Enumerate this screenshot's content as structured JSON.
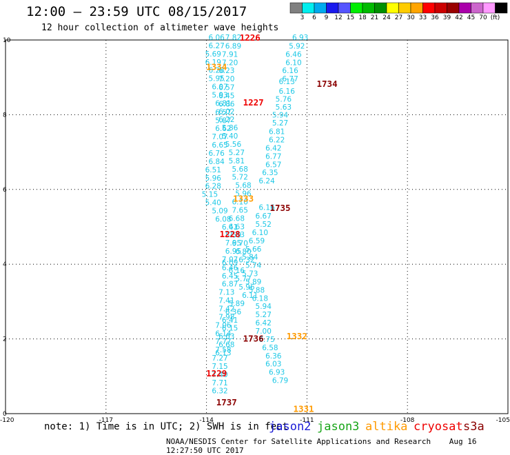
{
  "title": "12:00 – 23:59 UTC 08/15/2017",
  "subtitle": "12 hour collection of altimeter wave heights",
  "note": "note: 1) Time is in UTC; 2) SWH is in feet",
  "footer_left": "NOAA/NESDIS Center for Satellite Applications and Research",
  "footer_right": "Aug 16 12:27:50 UTC 2017",
  "legend": [
    {
      "name": "jason2",
      "color": "#1a1ad6"
    },
    {
      "name": "jason3",
      "color": "#17a517"
    },
    {
      "name": "altika",
      "color": "#ff9a00"
    },
    {
      "name": "cryosat",
      "color": "#ee0000"
    },
    {
      "name": "s3a",
      "color": "#8b0000"
    }
  ],
  "colorbar": {
    "colors": [
      "#808080",
      "#00eeee",
      "#00aaee",
      "#1a1aee",
      "#5555ff",
      "#00ee00",
      "#00bb00",
      "#009000",
      "#ffff00",
      "#ffcc00",
      "#ffa500",
      "#ff0000",
      "#cc0000",
      "#990000",
      "#aa00aa",
      "#cc66cc",
      "#ff99ff",
      "#000000"
    ],
    "labels": [
      "3",
      "6",
      "9",
      "12",
      "15",
      "18",
      "21",
      "24",
      "27",
      "30",
      "33",
      "36",
      "39",
      "42",
      "45",
      "70",
      "(ft)"
    ]
  },
  "chart_data": {
    "type": "scatter",
    "xlim": [
      -120,
      -105
    ],
    "ylim": [
      0,
      10
    ],
    "x_ticks": [
      "-120",
      "-117",
      "-114",
      "-111",
      "-108",
      "-105"
    ],
    "y_ticks": [
      "0",
      "2",
      "4",
      "6",
      "8",
      "10"
    ],
    "grid": true,
    "point_color": "#1ec8e6",
    "times": [
      {
        "label": "1226",
        "color": "#ee0000",
        "x": -112.7,
        "y": 9.98
      },
      {
        "label": "1334",
        "color": "#ff9a00",
        "x": -113.7,
        "y": 9.2
      },
      {
        "label": "1734",
        "color": "#8b0000",
        "x": -110.4,
        "y": 8.75
      },
      {
        "label": "1227",
        "color": "#ee0000",
        "x": -112.6,
        "y": 8.25
      },
      {
        "label": "1333",
        "color": "#ff9a00",
        "x": -112.9,
        "y": 5.67
      },
      {
        "label": "1735",
        "color": "#8b0000",
        "x": -111.8,
        "y": 5.42
      },
      {
        "label": "1228",
        "color": "#ee0000",
        "x": -113.3,
        "y": 4.72
      },
      {
        "label": "1332",
        "color": "#ff9a00",
        "x": -111.3,
        "y": 1.99
      },
      {
        "label": "1736",
        "color": "#8b0000",
        "x": -112.6,
        "y": 1.93
      },
      {
        "label": "1229",
        "color": "#ee0000",
        "x": -113.7,
        "y": 1.0
      },
      {
        "label": "1737",
        "color": "#8b0000",
        "x": -113.4,
        "y": 0.22
      },
      {
        "label": "1331",
        "color": "#ff9a00",
        "x": -111.1,
        "y": 0.05
      }
    ],
    "points": [
      {
        "x": -113.2,
        "y": 10.0,
        "v": "7.82"
      },
      {
        "x": -111.2,
        "y": 10.0,
        "v": "6.93"
      },
      {
        "x": -113.2,
        "y": 9.77,
        "v": "6.89"
      },
      {
        "x": -111.3,
        "y": 9.77,
        "v": "5.92"
      },
      {
        "x": -113.3,
        "y": 9.55,
        "v": "7.91"
      },
      {
        "x": -111.4,
        "y": 9.55,
        "v": "6.46"
      },
      {
        "x": -113.3,
        "y": 9.33,
        "v": "7.20"
      },
      {
        "x": -111.4,
        "y": 9.33,
        "v": "6.10"
      },
      {
        "x": -113.4,
        "y": 9.11,
        "v": "6.23"
      },
      {
        "x": -111.5,
        "y": 9.11,
        "v": "6.16"
      },
      {
        "x": -113.4,
        "y": 8.89,
        "v": "7.20"
      },
      {
        "x": -111.5,
        "y": 8.89,
        "v": "6.77"
      },
      {
        "x": -111.6,
        "y": 8.82,
        "v": "6.13"
      },
      {
        "x": -113.4,
        "y": 8.66,
        "v": "6.57"
      },
      {
        "x": -111.6,
        "y": 8.56,
        "v": "6.16"
      },
      {
        "x": -113.4,
        "y": 8.44,
        "v": "6.45"
      },
      {
        "x": -111.7,
        "y": 8.35,
        "v": "5.76"
      },
      {
        "x": -113.4,
        "y": 8.22,
        "v": "6.86"
      },
      {
        "x": -111.7,
        "y": 8.14,
        "v": "5.63"
      },
      {
        "x": -113.5,
        "y": 8.0,
        "v": "6.57"
      },
      {
        "x": -111.8,
        "y": 7.92,
        "v": "5.94"
      },
      {
        "x": -113.5,
        "y": 7.78,
        "v": "5.87"
      },
      {
        "x": -111.8,
        "y": 7.71,
        "v": "5.27"
      },
      {
        "x": -113.5,
        "y": 7.56,
        "v": "6.62"
      },
      {
        "x": -111.9,
        "y": 7.48,
        "v": "6.81"
      },
      {
        "x": -113.6,
        "y": 7.34,
        "v": "7.07"
      },
      {
        "x": -111.9,
        "y": 7.26,
        "v": "6.22"
      },
      {
        "x": -113.6,
        "y": 7.12,
        "v": "6.65"
      },
      {
        "x": -112.0,
        "y": 7.04,
        "v": "6.42"
      },
      {
        "x": -113.7,
        "y": 6.9,
        "v": "6.76"
      },
      {
        "x": -112.0,
        "y": 6.82,
        "v": "6.77"
      },
      {
        "x": -113.7,
        "y": 6.68,
        "v": "6.84"
      },
      {
        "x": -112.0,
        "y": 6.6,
        "v": "6.57"
      },
      {
        "x": -113.8,
        "y": 6.46,
        "v": "6.51"
      },
      {
        "x": -112.1,
        "y": 6.38,
        "v": "6.35"
      },
      {
        "x": -113.8,
        "y": 6.24,
        "v": "5.96"
      },
      {
        "x": -112.2,
        "y": 6.16,
        "v": "6.24"
      },
      {
        "x": -113.8,
        "y": 6.02,
        "v": "6.28"
      },
      {
        "x": -113.9,
        "y": 5.8,
        "v": "5.15"
      },
      {
        "x": -113.8,
        "y": 5.58,
        "v": "5.40"
      },
      {
        "x": -112.2,
        "y": 5.45,
        "v": "6.16"
      },
      {
        "x": -113.6,
        "y": 5.36,
        "v": "5.09"
      },
      {
        "x": -112.3,
        "y": 5.22,
        "v": "6.67"
      },
      {
        "x": -113.5,
        "y": 5.14,
        "v": "6.08"
      },
      {
        "x": -112.3,
        "y": 5.0,
        "v": "5.52"
      },
      {
        "x": -113.3,
        "y": 4.93,
        "v": "6.41"
      },
      {
        "x": -112.4,
        "y": 4.78,
        "v": "6.10"
      },
      {
        "x": -113.2,
        "y": 4.71,
        "v": "5.59"
      },
      {
        "x": -112.5,
        "y": 4.56,
        "v": "6.59"
      },
      {
        "x": -113.0,
        "y": 4.49,
        "v": "6.70"
      },
      {
        "x": -112.6,
        "y": 4.34,
        "v": "5.66"
      },
      {
        "x": -112.9,
        "y": 4.27,
        "v": "6.80"
      },
      {
        "x": -112.7,
        "y": 4.12,
        "v": "5.84"
      },
      {
        "x": -112.8,
        "y": 4.05,
        "v": "6.32"
      },
      {
        "x": -112.6,
        "y": 3.9,
        "v": "5.74"
      },
      {
        "x": -112.7,
        "y": 3.68,
        "v": "5.73"
      },
      {
        "x": -112.6,
        "y": 3.46,
        "v": "5.89"
      },
      {
        "x": -112.5,
        "y": 3.24,
        "v": "5.88"
      },
      {
        "x": -112.4,
        "y": 3.02,
        "v": "6.18"
      },
      {
        "x": -112.3,
        "y": 2.8,
        "v": "5.94"
      },
      {
        "x": -112.3,
        "y": 2.58,
        "v": "5.27"
      },
      {
        "x": -112.3,
        "y": 2.36,
        "v": "6.42"
      },
      {
        "x": -112.3,
        "y": 2.14,
        "v": "7.00"
      },
      {
        "x": -112.2,
        "y": 1.92,
        "v": "6.75"
      },
      {
        "x": -112.1,
        "y": 1.7,
        "v": "6.58"
      },
      {
        "x": -112.0,
        "y": 1.48,
        "v": "6.36"
      },
      {
        "x": -112.0,
        "y": 1.26,
        "v": "6.03"
      },
      {
        "x": -111.9,
        "y": 1.04,
        "v": "6.93"
      },
      {
        "x": -111.8,
        "y": 0.82,
        "v": "6.79"
      },
      {
        "x": -113.7,
        "y": 10.0,
        "v": "6.06"
      },
      {
        "x": -113.7,
        "y": 9.78,
        "v": "6.27"
      },
      {
        "x": -113.8,
        "y": 9.56,
        "v": "5.69"
      },
      {
        "x": -113.8,
        "y": 9.34,
        "v": "6.19"
      },
      {
        "x": -113.7,
        "y": 9.12,
        "v": "6.28"
      },
      {
        "x": -113.7,
        "y": 8.9,
        "v": "5.95"
      },
      {
        "x": -113.6,
        "y": 8.68,
        "v": "6.07"
      },
      {
        "x": -113.6,
        "y": 8.46,
        "v": "5.93"
      },
      {
        "x": -113.5,
        "y": 8.24,
        "v": "6.81"
      },
      {
        "x": -113.4,
        "y": 8.02,
        "v": "6.02"
      },
      {
        "x": -113.4,
        "y": 7.8,
        "v": "6.22"
      },
      {
        "x": -113.3,
        "y": 7.58,
        "v": "5.86"
      },
      {
        "x": -113.3,
        "y": 7.36,
        "v": "5.40"
      },
      {
        "x": -113.2,
        "y": 7.14,
        "v": "5.56"
      },
      {
        "x": -113.1,
        "y": 6.92,
        "v": "5.27"
      },
      {
        "x": -113.1,
        "y": 6.7,
        "v": "5.81"
      },
      {
        "x": -113.0,
        "y": 6.48,
        "v": "5.68"
      },
      {
        "x": -113.0,
        "y": 6.26,
        "v": "5.72"
      },
      {
        "x": -112.9,
        "y": 6.04,
        "v": "5.68"
      },
      {
        "x": -112.9,
        "y": 5.82,
        "v": "5.96"
      },
      {
        "x": -113.0,
        "y": 5.6,
        "v": "6.10"
      },
      {
        "x": -113.0,
        "y": 5.38,
        "v": "7.65"
      },
      {
        "x": -113.1,
        "y": 5.16,
        "v": "6.68"
      },
      {
        "x": -113.1,
        "y": 4.94,
        "v": "6.63"
      },
      {
        "x": -113.1,
        "y": 4.72,
        "v": "7.53"
      },
      {
        "x": -113.2,
        "y": 4.5,
        "v": "7.95"
      },
      {
        "x": -113.2,
        "y": 4.28,
        "v": "6.95"
      },
      {
        "x": -113.3,
        "y": 4.06,
        "v": "7.07"
      },
      {
        "x": -113.3,
        "y": 3.84,
        "v": "6.46"
      },
      {
        "x": -113.3,
        "y": 3.62,
        "v": "6.45"
      },
      {
        "x": -113.3,
        "y": 3.4,
        "v": "6.87"
      },
      {
        "x": -113.4,
        "y": 3.18,
        "v": "7.13"
      },
      {
        "x": -113.4,
        "y": 2.96,
        "v": "7.41"
      },
      {
        "x": -113.4,
        "y": 2.74,
        "v": "7.42"
      },
      {
        "x": -113.4,
        "y": 2.52,
        "v": "7.98"
      },
      {
        "x": -113.5,
        "y": 2.3,
        "v": "7.06"
      },
      {
        "x": -113.5,
        "y": 2.08,
        "v": "6.14"
      },
      {
        "x": -113.5,
        "y": 1.86,
        "v": "7.77"
      },
      {
        "x": -113.5,
        "y": 1.64,
        "v": "7.58"
      },
      {
        "x": -113.6,
        "y": 1.42,
        "v": "7.27"
      },
      {
        "x": -113.6,
        "y": 1.2,
        "v": "7.15"
      },
      {
        "x": -113.6,
        "y": 0.98,
        "v": "7.40"
      },
      {
        "x": -113.6,
        "y": 0.76,
        "v": "7.71"
      },
      {
        "x": -113.6,
        "y": 0.54,
        "v": "6.32"
      },
      {
        "x": -113.3,
        "y": 3.98,
        "v": "6.09"
      },
      {
        "x": -113.1,
        "y": 3.76,
        "v": "6.16"
      },
      {
        "x": -112.9,
        "y": 3.54,
        "v": "5.77"
      },
      {
        "x": -112.8,
        "y": 3.32,
        "v": "5.96"
      },
      {
        "x": -112.7,
        "y": 3.1,
        "v": "6.11"
      },
      {
        "x": -113.1,
        "y": 2.88,
        "v": "5.89"
      },
      {
        "x": -113.2,
        "y": 2.66,
        "v": "6.36"
      },
      {
        "x": -113.3,
        "y": 2.44,
        "v": "6.41"
      },
      {
        "x": -113.3,
        "y": 2.22,
        "v": "6.15"
      },
      {
        "x": -113.4,
        "y": 2.0,
        "v": "6.63"
      },
      {
        "x": -113.4,
        "y": 1.78,
        "v": "6.68"
      },
      {
        "x": -113.5,
        "y": 1.56,
        "v": "6.13"
      }
    ]
  }
}
